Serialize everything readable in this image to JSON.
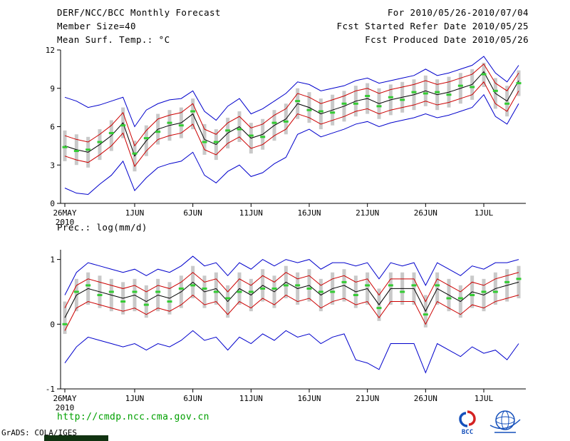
{
  "header": {
    "title": "DERF/NCC/BCC Monthly Forecast",
    "member_size": "Member Size=40",
    "for_range": "For 2010/05/26-2010/07/04",
    "fcst_started": "Fcst Started Refer Date 2010/05/25",
    "fcst_produced": "Fcst Produced Date 2010/05/26"
  },
  "footer": {
    "url": "http://cmdp.ncc.cma.gov.cn",
    "grads_credit": "GrADS: COLA/IGES",
    "bcc_label": "BCC"
  },
  "colors": {
    "mean_line": "#000000",
    "quartile_line": "#cc0000",
    "envelope_line": "#0000cc",
    "median_dash": "#33cc33",
    "spread_bar": "#c9c9c9",
    "url_green": "#00a000"
  },
  "chart_data": [
    {
      "type": "line",
      "name": "temperature-panel",
      "title": "Mean Surf. Temp.: °C",
      "ylabel": "°C",
      "ylim": [
        0,
        12
      ],
      "yticks": [
        0,
        3,
        6,
        9,
        12
      ],
      "grid": false,
      "legend": "none",
      "n": 40,
      "x_tick_labels": [
        "26MAY",
        "1JUN",
        "6JUN",
        "11JUN",
        "16JUN",
        "21JUN",
        "26JUN",
        "1JUL"
      ],
      "x_tick_positions": [
        0,
        6,
        11,
        16,
        21,
        26,
        31,
        36
      ],
      "x_sub_label": "2010",
      "series": [
        {
          "name": "ensemble-spread",
          "style": "bar",
          "color": "#c9c9c9",
          "hi": [
            5.7,
            5.4,
            5.2,
            5.8,
            6.5,
            7.5,
            4.9,
            6.1,
            7.0,
            7.3,
            7.5,
            8.2,
            6.2,
            5.8,
            6.7,
            7.2,
            6.3,
            6.6,
            7.3,
            7.8,
            9.0,
            8.7,
            8.2,
            8.5,
            8.8,
            9.2,
            9.4,
            9.0,
            9.3,
            9.5,
            9.7,
            10.0,
            9.7,
            9.9,
            10.2,
            10.5,
            11.0,
            9.8,
            9.2,
            10.4
          ],
          "lo": [
            3.3,
            3.0,
            2.8,
            3.4,
            4.1,
            5.1,
            2.5,
            3.7,
            4.6,
            4.9,
            5.1,
            5.8,
            3.8,
            3.4,
            4.3,
            4.8,
            3.9,
            4.2,
            4.9,
            5.4,
            6.6,
            6.3,
            5.8,
            6.1,
            6.4,
            6.8,
            7.0,
            6.6,
            6.9,
            7.1,
            7.3,
            7.6,
            7.3,
            7.5,
            7.8,
            8.1,
            9.1,
            7.4,
            6.8,
            8.4
          ]
        },
        {
          "name": "max-envelope",
          "style": "line",
          "color": "#0000cc",
          "values": [
            8.3,
            8.0,
            7.5,
            7.7,
            8.0,
            8.3,
            6.0,
            7.3,
            7.8,
            8.1,
            8.2,
            8.8,
            7.2,
            6.5,
            7.6,
            8.2,
            7.0,
            7.4,
            8.0,
            8.6,
            9.5,
            9.3,
            8.8,
            9.0,
            9.2,
            9.6,
            9.8,
            9.4,
            9.6,
            9.8,
            10.0,
            10.5,
            10.0,
            10.2,
            10.5,
            10.8,
            11.5,
            10.2,
            9.5,
            10.8
          ]
        },
        {
          "name": "min-envelope",
          "style": "line",
          "color": "#0000cc",
          "values": [
            1.2,
            0.8,
            0.7,
            1.5,
            2.2,
            3.3,
            1.0,
            2.0,
            2.8,
            3.1,
            3.3,
            4.0,
            2.2,
            1.6,
            2.5,
            3.0,
            2.1,
            2.4,
            3.1,
            3.6,
            5.4,
            5.8,
            5.2,
            5.5,
            5.8,
            6.2,
            6.4,
            6.0,
            6.3,
            6.5,
            6.7,
            7.0,
            6.7,
            6.9,
            7.2,
            7.5,
            8.5,
            6.8,
            6.2,
            7.8
          ]
        },
        {
          "name": "upper-quartile",
          "style": "line",
          "color": "#cc0000",
          "values": [
            5.3,
            5.0,
            4.8,
            5.4,
            6.1,
            7.1,
            4.5,
            5.7,
            6.6,
            6.9,
            7.1,
            7.8,
            5.8,
            5.4,
            6.3,
            6.8,
            5.9,
            6.2,
            6.9,
            7.4,
            8.6,
            8.3,
            7.8,
            8.1,
            8.4,
            8.8,
            9.0,
            8.6,
            8.9,
            9.1,
            9.3,
            9.6,
            9.3,
            9.5,
            9.8,
            10.1,
            10.9,
            9.4,
            8.8,
            10.2
          ]
        },
        {
          "name": "lower-quartile",
          "style": "line",
          "color": "#cc0000",
          "values": [
            3.7,
            3.4,
            3.2,
            3.8,
            4.5,
            5.5,
            2.9,
            4.1,
            5.0,
            5.3,
            5.5,
            6.2,
            4.2,
            3.8,
            4.7,
            5.2,
            4.3,
            4.6,
            5.3,
            5.8,
            7.0,
            6.7,
            6.2,
            6.5,
            6.8,
            7.2,
            7.4,
            7.0,
            7.3,
            7.5,
            7.7,
            8.0,
            7.7,
            7.9,
            8.2,
            8.5,
            9.5,
            7.8,
            7.2,
            8.8
          ]
        },
        {
          "name": "ensemble-mean",
          "style": "line",
          "color": "#000000",
          "values": [
            4.5,
            4.2,
            4.0,
            4.6,
            5.3,
            6.3,
            3.7,
            4.9,
            5.8,
            6.1,
            6.3,
            7.0,
            5.0,
            4.6,
            5.5,
            6.0,
            5.1,
            5.4,
            6.1,
            6.6,
            7.8,
            7.5,
            7.0,
            7.3,
            7.6,
            8.0,
            8.2,
            7.8,
            8.1,
            8.3,
            8.5,
            8.8,
            8.5,
            8.7,
            9.0,
            9.3,
            10.3,
            8.6,
            8.0,
            9.6
          ]
        },
        {
          "name": "ensemble-median",
          "style": "dash",
          "color": "#33cc33",
          "values": [
            4.4,
            4.1,
            4.2,
            4.8,
            5.5,
            6.1,
            3.9,
            5.1,
            5.6,
            6.3,
            6.1,
            7.2,
            4.8,
            4.8,
            5.7,
            5.8,
            5.3,
            5.2,
            6.3,
            6.4,
            8.0,
            7.3,
            7.2,
            7.1,
            7.8,
            7.8,
            8.4,
            7.6,
            8.3,
            8.1,
            8.7,
            8.6,
            8.7,
            8.5,
            9.2,
            9.1,
            10.1,
            8.8,
            7.8,
            9.4
          ]
        }
      ]
    },
    {
      "type": "line",
      "name": "precipitation-panel",
      "title": "Prec.: log(mm/d)",
      "ylabel": "log(mm/d)",
      "ylim": [
        -1,
        1.15
      ],
      "yticks": [
        -1,
        0,
        1
      ],
      "grid": false,
      "legend": "none",
      "n": 40,
      "x_tick_labels": [
        "26MAY",
        "1JUN",
        "6JUN",
        "11JUN",
        "16JUN",
        "21JUN",
        "26JUN",
        "1JUL"
      ],
      "x_tick_positions": [
        0,
        6,
        11,
        16,
        21,
        26,
        31,
        36
      ],
      "x_sub_label": "2010",
      "series": [
        {
          "name": "ensemble-spread",
          "style": "bar",
          "color": "#c9c9c9",
          "hi": [
            0.35,
            0.7,
            0.8,
            0.75,
            0.7,
            0.65,
            0.7,
            0.6,
            0.7,
            0.65,
            0.75,
            0.9,
            0.75,
            0.8,
            0.6,
            0.8,
            0.7,
            0.85,
            0.75,
            0.9,
            0.8,
            0.85,
            0.7,
            0.8,
            0.85,
            0.75,
            0.8,
            0.55,
            0.8,
            0.8,
            0.8,
            0.45,
            0.8,
            0.7,
            0.6,
            0.75,
            0.7,
            0.8,
            0.85,
            0.9
          ],
          "lo": [
            -0.15,
            0.2,
            0.3,
            0.25,
            0.2,
            0.15,
            0.2,
            0.1,
            0.2,
            0.15,
            0.25,
            0.4,
            0.25,
            0.3,
            0.1,
            0.3,
            0.2,
            0.35,
            0.25,
            0.4,
            0.3,
            0.35,
            0.2,
            0.3,
            0.35,
            0.25,
            0.3,
            0.05,
            0.3,
            0.3,
            0.3,
            -0.05,
            0.3,
            0.2,
            0.1,
            0.25,
            0.2,
            0.3,
            0.35,
            0.4
          ]
        },
        {
          "name": "max-envelope",
          "style": "line",
          "color": "#0000cc",
          "values": [
            0.45,
            0.8,
            0.95,
            0.9,
            0.85,
            0.8,
            0.85,
            0.75,
            0.85,
            0.8,
            0.9,
            1.05,
            0.9,
            0.95,
            0.75,
            0.95,
            0.85,
            1.0,
            0.9,
            1.0,
            0.95,
            1.0,
            0.85,
            0.95,
            0.95,
            0.9,
            0.95,
            0.7,
            0.95,
            0.9,
            0.95,
            0.6,
            0.95,
            0.85,
            0.75,
            0.9,
            0.85,
            0.95,
            0.95,
            1.0
          ]
        },
        {
          "name": "min-envelope",
          "style": "line",
          "color": "#0000cc",
          "values": [
            -0.6,
            -0.35,
            -0.2,
            -0.25,
            -0.3,
            -0.35,
            -0.3,
            -0.4,
            -0.3,
            -0.35,
            -0.25,
            -0.1,
            -0.25,
            -0.2,
            -0.4,
            -0.2,
            -0.3,
            -0.15,
            -0.25,
            -0.1,
            -0.2,
            -0.15,
            -0.3,
            -0.2,
            -0.15,
            -0.55,
            -0.6,
            -0.7,
            -0.3,
            -0.3,
            -0.3,
            -0.75,
            -0.3,
            -0.4,
            -0.5,
            -0.35,
            -0.45,
            -0.4,
            -0.55,
            -0.3
          ]
        },
        {
          "name": "upper-quartile",
          "style": "line",
          "color": "#cc0000",
          "values": [
            0.25,
            0.6,
            0.7,
            0.65,
            0.6,
            0.55,
            0.6,
            0.5,
            0.6,
            0.55,
            0.65,
            0.8,
            0.65,
            0.7,
            0.5,
            0.7,
            0.6,
            0.75,
            0.65,
            0.8,
            0.7,
            0.75,
            0.6,
            0.7,
            0.75,
            0.65,
            0.7,
            0.45,
            0.7,
            0.7,
            0.7,
            0.35,
            0.7,
            0.6,
            0.5,
            0.65,
            0.6,
            0.7,
            0.75,
            0.8
          ]
        },
        {
          "name": "lower-quartile",
          "style": "line",
          "color": "#cc0000",
          "values": [
            -0.1,
            0.25,
            0.35,
            0.3,
            0.25,
            0.2,
            0.25,
            0.15,
            0.25,
            0.2,
            0.3,
            0.45,
            0.3,
            0.35,
            0.15,
            0.35,
            0.25,
            0.4,
            0.3,
            0.45,
            0.35,
            0.4,
            0.25,
            0.35,
            0.4,
            0.3,
            0.35,
            0.1,
            0.35,
            0.35,
            0.35,
            0.0,
            0.35,
            0.25,
            0.15,
            0.3,
            0.25,
            0.35,
            0.4,
            0.45
          ]
        },
        {
          "name": "ensemble-mean",
          "style": "line",
          "color": "#000000",
          "values": [
            0.1,
            0.45,
            0.55,
            0.5,
            0.45,
            0.4,
            0.45,
            0.35,
            0.45,
            0.4,
            0.5,
            0.65,
            0.5,
            0.55,
            0.35,
            0.55,
            0.45,
            0.6,
            0.5,
            0.65,
            0.55,
            0.6,
            0.45,
            0.55,
            0.6,
            0.5,
            0.55,
            0.3,
            0.55,
            0.55,
            0.55,
            0.2,
            0.55,
            0.45,
            0.35,
            0.5,
            0.45,
            0.55,
            0.6,
            0.65
          ]
        },
        {
          "name": "ensemble-median",
          "style": "dash",
          "color": "#33cc33",
          "values": [
            0.0,
            0.5,
            0.6,
            0.45,
            0.5,
            0.35,
            0.5,
            0.3,
            0.5,
            0.35,
            0.55,
            0.6,
            0.55,
            0.5,
            0.4,
            0.5,
            0.5,
            0.55,
            0.55,
            0.6,
            0.6,
            0.55,
            0.5,
            0.5,
            0.65,
            0.45,
            0.6,
            0.25,
            0.6,
            0.5,
            0.6,
            0.15,
            0.6,
            0.4,
            0.4,
            0.45,
            0.5,
            0.5,
            0.65,
            0.7
          ]
        }
      ]
    }
  ]
}
